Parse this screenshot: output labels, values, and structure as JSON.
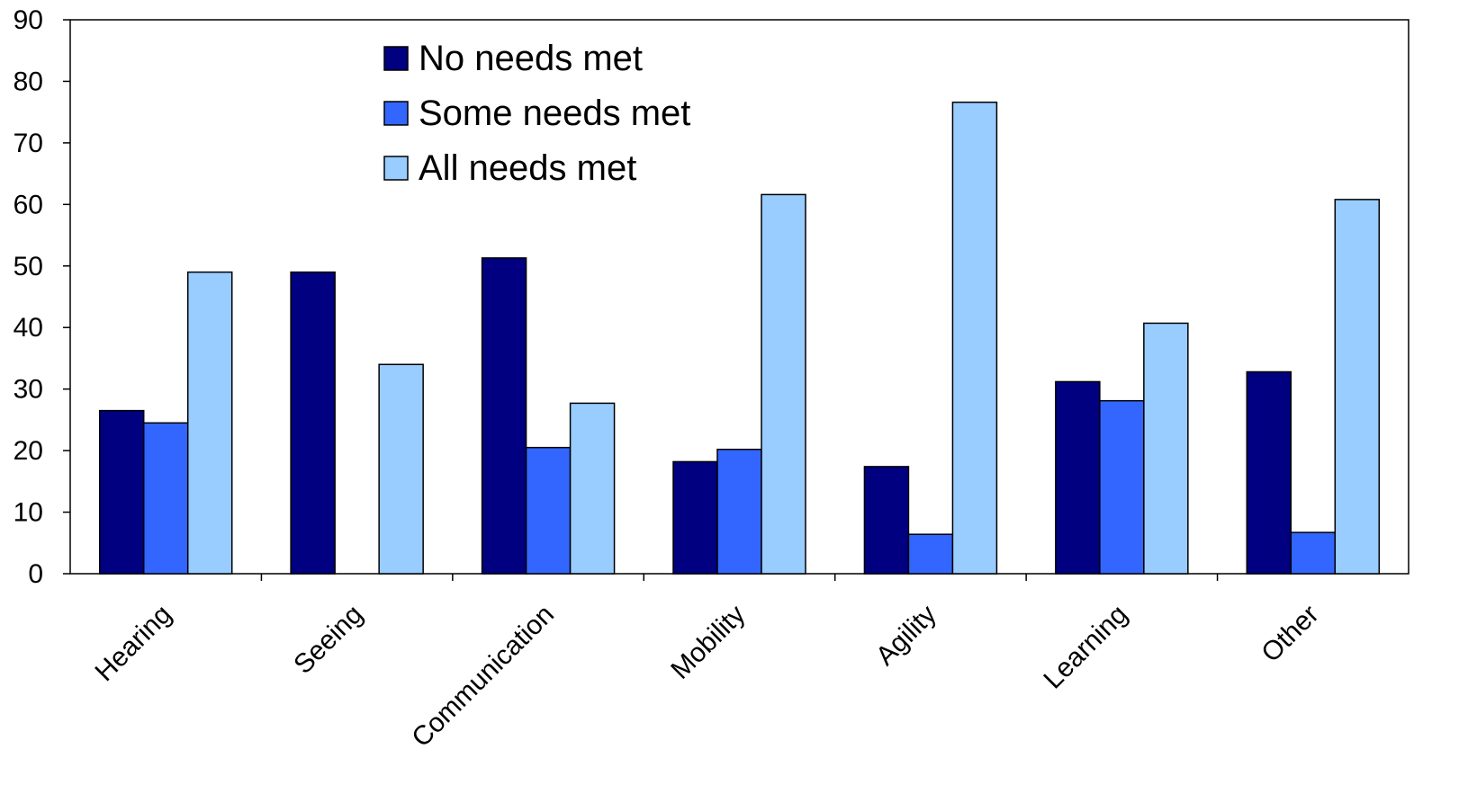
{
  "chart_data": {
    "type": "bar",
    "title": "",
    "xlabel": "",
    "ylabel": "",
    "ylim": [
      0,
      90
    ],
    "yticks": [
      0,
      10,
      20,
      30,
      40,
      50,
      60,
      70,
      80,
      90
    ],
    "grid": false,
    "legend_position": "top-center",
    "categories": [
      "Hearing",
      "Seeing",
      "Communication",
      "Mobility",
      "Agility",
      "Learning",
      "Other"
    ],
    "series": [
      {
        "name": "No needs met",
        "color": "#000080",
        "values": [
          26.5,
          49,
          51.3,
          18.2,
          17.4,
          31.2,
          32.8
        ]
      },
      {
        "name": "Some needs met",
        "color": "#3366FF",
        "values": [
          24.5,
          null,
          20.5,
          20.2,
          6.4,
          28.1,
          6.7
        ]
      },
      {
        "name": "All needs met",
        "color": "#99CCFF",
        "values": [
          49,
          34,
          27.7,
          61.6,
          76.6,
          40.7,
          60.8
        ]
      }
    ]
  }
}
